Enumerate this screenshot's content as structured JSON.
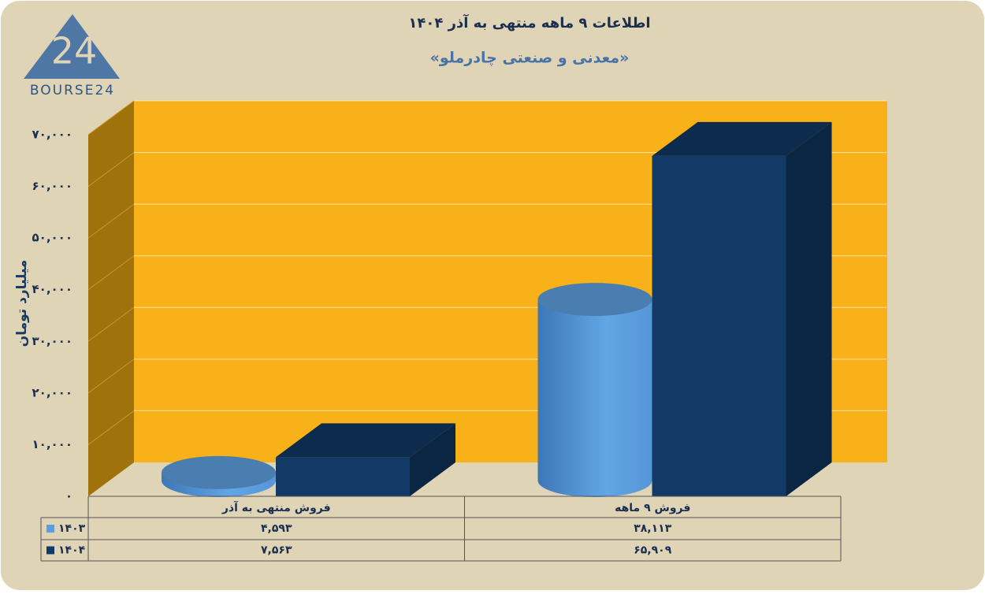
{
  "logo": {
    "mark": "24",
    "text": "BOURSE24"
  },
  "chart_data": {
    "type": "bar3d",
    "title": "اطلاعات ۹ ماهه منتهی به آذر ۱۴۰۴",
    "subtitle": "«معدنی و صنعتی چادرملو»",
    "y_label": "میلیارد تومان",
    "categories": [
      "فروش منتهی به آذر",
      "فروش ۹ ماهه"
    ],
    "series": [
      {
        "name": "۱۴۰۳",
        "color": "#5b9fe0",
        "shape": "cylinder",
        "values": [
          4593,
          38113
        ],
        "value_labels": [
          "۴,۵۹۳",
          "۳۸,۱۱۳"
        ]
      },
      {
        "name": "۱۴۰۴",
        "color": "#133a66",
        "shape": "box",
        "values": [
          7563,
          65909
        ],
        "value_labels": [
          "۷,۵۶۳",
          "۶۵,۹۰۹"
        ]
      }
    ],
    "ylim": [
      0,
      70000
    ],
    "yticks": [
      {
        "value": 0,
        "label": "۰"
      },
      {
        "value": 10000,
        "label": "۱۰,۰۰۰"
      },
      {
        "value": 20000,
        "label": "۲۰,۰۰۰"
      },
      {
        "value": 30000,
        "label": "۳۰,۰۰۰"
      },
      {
        "value": 40000,
        "label": "۴۰,۰۰۰"
      },
      {
        "value": 50000,
        "label": "۵۰,۰۰۰"
      },
      {
        "value": 60000,
        "label": "۶۰,۰۰۰"
      },
      {
        "value": 70000,
        "label": "۷۰,۰۰۰"
      }
    ],
    "grid": true
  }
}
